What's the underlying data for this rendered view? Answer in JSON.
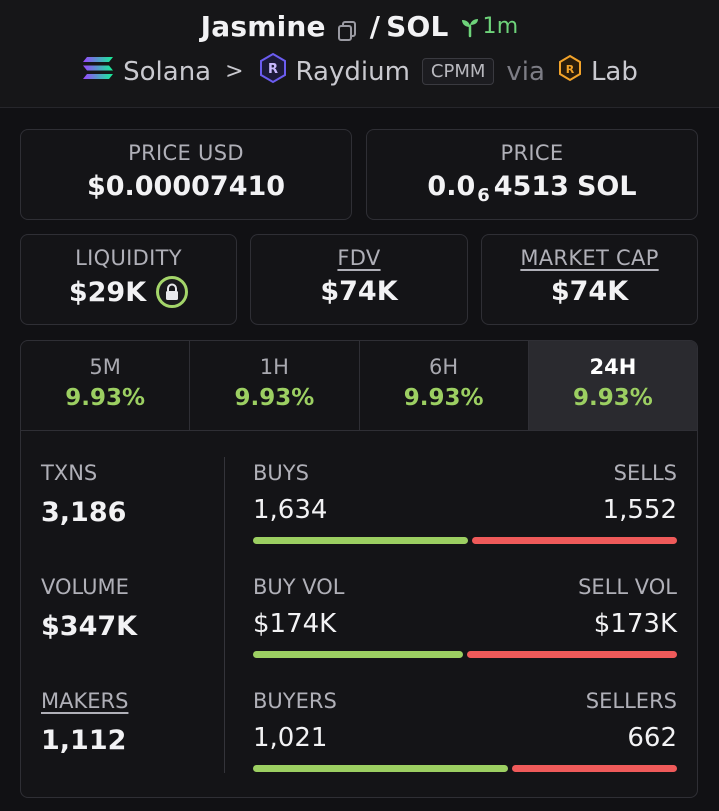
{
  "header": {
    "token": "Jasmine",
    "separator": "/",
    "quote": "SOL",
    "age": "1m",
    "chain": "Solana",
    "dex": "Raydium",
    "pool_type": "CPMM",
    "via_label": "via",
    "launchpad": "Lab"
  },
  "price_usd": {
    "label": "PRICE USD",
    "value": "$0.00007410"
  },
  "price_native": {
    "label": "PRICE",
    "prefix": "0.0",
    "zeros": "6",
    "digits": "4513",
    "unit": "SOL"
  },
  "liquidity": {
    "label": "LIQUIDITY",
    "value": "$29K"
  },
  "fdv": {
    "label": "FDV",
    "value": "$74K"
  },
  "market_cap": {
    "label": "MARKET CAP",
    "value": "$74K"
  },
  "tabs": [
    {
      "label": "5M",
      "change": "9.93%"
    },
    {
      "label": "1H",
      "change": "9.93%"
    },
    {
      "label": "6H",
      "change": "9.93%"
    },
    {
      "label": "24H",
      "change": "9.93%"
    }
  ],
  "active_tab": "24H",
  "txns": {
    "label": "TXNS",
    "value": "3,186"
  },
  "volume": {
    "label": "VOLUME",
    "value": "$347K"
  },
  "makers": {
    "label": "MAKERS",
    "value": "1,112"
  },
  "buys_sells": {
    "left_label": "BUYS",
    "right_label": "SELLS",
    "left_value": "1,634",
    "right_value": "1,552",
    "left_share": 0.513
  },
  "buy_sell_vol": {
    "left_label": "BUY VOL",
    "right_label": "SELL VOL",
    "left_value": "$174K",
    "right_value": "$173K",
    "left_share": 0.501
  },
  "buyers_sellers": {
    "left_label": "BUYERS",
    "right_label": "SELLERS",
    "left_value": "1,021",
    "right_value": "662",
    "left_share": 0.607
  },
  "colors": {
    "positive": "#9ccf62",
    "negative": "#ef5a5a",
    "age": "#6ed37a",
    "lock_ring": "#a4d56a"
  }
}
